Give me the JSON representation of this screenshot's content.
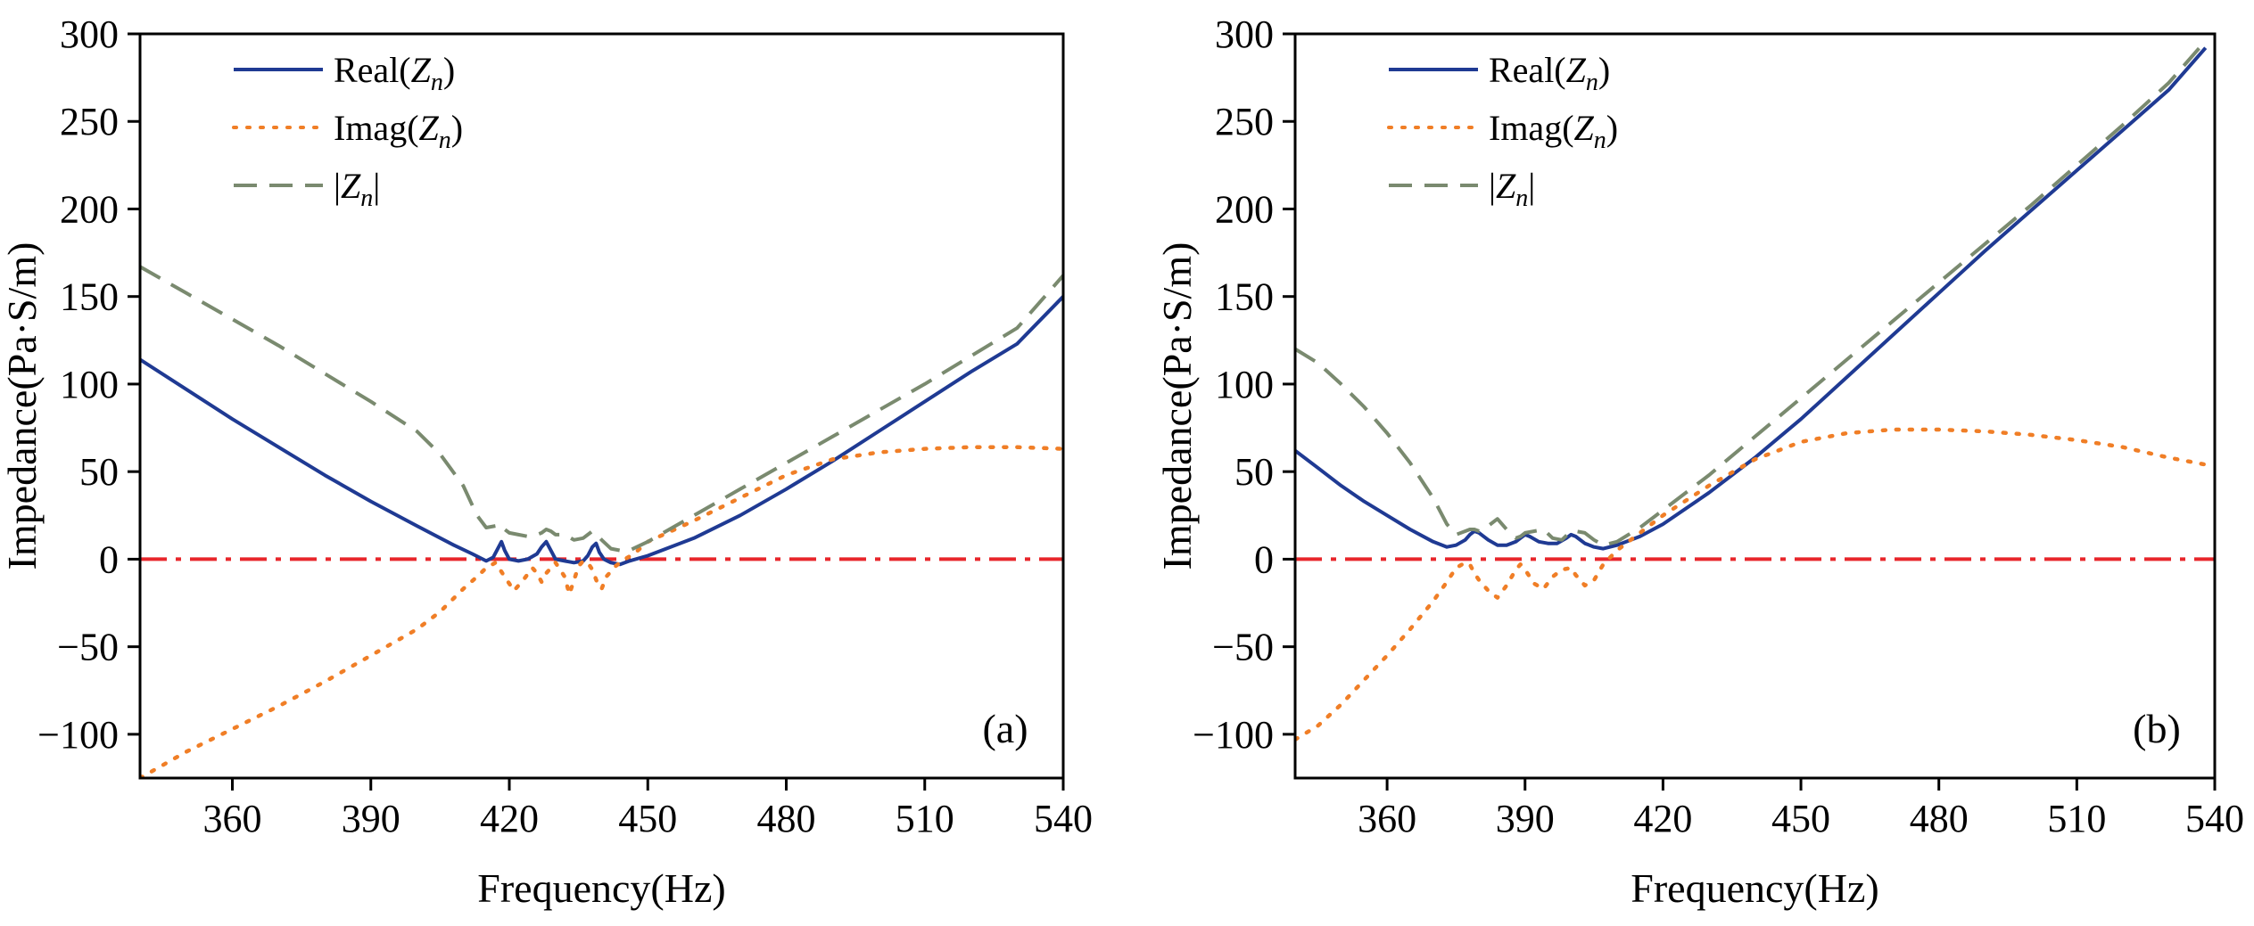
{
  "chart_data": [
    {
      "type": "line",
      "panel_label": "(a)",
      "xlabel": "Frequency(Hz)",
      "ylabel": "Impedance(Pa·S/m)",
      "xlim": [
        340,
        540
      ],
      "ylim": [
        -125,
        300
      ],
      "xticks": [
        360,
        390,
        420,
        450,
        480,
        510,
        540
      ],
      "yticks": [
        -100,
        -50,
        0,
        50,
        100,
        150,
        200,
        250,
        300
      ],
      "ytick_labels": [
        "−100",
        "−50",
        "0",
        "50",
        "100",
        "150",
        "200",
        "250",
        "300"
      ],
      "legend_position": "top-left",
      "reference_line": {
        "name": "zero line",
        "y": 0,
        "color": "#e8262b",
        "style": "dashdot"
      },
      "series": [
        {
          "name": "Real(Z_n)",
          "legend_base": "Real(",
          "legend_var": "Z",
          "legend_sub": "n",
          "legend_tail": ")",
          "color": "#1f3a93",
          "style": "solid",
          "x": [
            340,
            350,
            360,
            370,
            380,
            390,
            400,
            408,
            412,
            415,
            416.5,
            417.5,
            418.3,
            419,
            420,
            422,
            424,
            426,
            427,
            428,
            429,
            430,
            432,
            434,
            436,
            437,
            438,
            438.8,
            439.5,
            440.5,
            442,
            444,
            446,
            450,
            460,
            470,
            480,
            490,
            500,
            510,
            520,
            530,
            540
          ],
          "y": [
            114,
            97,
            80,
            64,
            48,
            33,
            19,
            8,
            3,
            -1,
            1,
            6,
            10,
            5,
            0,
            -1,
            0,
            3,
            7,
            10,
            5,
            0,
            -1,
            -2,
            -1,
            2,
            7,
            9,
            4,
            0,
            -2,
            -3,
            -1,
            2,
            12,
            25,
            40,
            56,
            73,
            90,
            107,
            123,
            150
          ]
        },
        {
          "name": "Imag(Z_n)",
          "legend_base": "Imag(",
          "legend_var": "Z",
          "legend_sub": "n",
          "legend_tail": ")",
          "color": "#f07e26",
          "style": "dotted",
          "x": [
            340,
            350,
            360,
            370,
            380,
            390,
            400,
            405,
            410,
            413,
            415,
            417,
            418,
            419,
            420,
            421,
            423,
            425,
            426,
            427,
            428,
            430,
            432,
            433,
            434,
            435,
            436,
            437,
            438,
            439,
            440,
            441,
            443,
            445,
            447,
            450,
            460,
            470,
            480,
            490,
            500,
            510,
            520,
            530,
            540
          ],
          "y": [
            -125,
            -110,
            -97,
            -84,
            -70,
            -55,
            -40,
            -30,
            -17,
            -10,
            -5,
            -2,
            -6,
            -10,
            -14,
            -18,
            -12,
            -5,
            -8,
            -13,
            -8,
            -2,
            -10,
            -20,
            -12,
            -4,
            -1,
            -2,
            -6,
            -13,
            -17,
            -10,
            -4,
            0,
            3,
            10,
            22,
            35,
            48,
            57,
            61,
            63,
            64,
            64,
            63
          ]
        },
        {
          "name": "|Z_n|",
          "legend_base": "|",
          "legend_var": "Z",
          "legend_sub": "n",
          "legend_tail": "|",
          "color": "#7a8a6f",
          "style": "dashed",
          "x": [
            340,
            350,
            360,
            370,
            380,
            390,
            400,
            405,
            410,
            413,
            415,
            417,
            418,
            419,
            420,
            422,
            424,
            426,
            427,
            428,
            429,
            430,
            432,
            434,
            436,
            437,
            438,
            439,
            440,
            442,
            444,
            446,
            450,
            460,
            470,
            480,
            490,
            500,
            510,
            520,
            530,
            540
          ],
          "y": [
            167,
            152,
            137,
            122,
            106,
            90,
            73,
            60,
            42,
            25,
            18,
            19,
            20,
            17,
            15,
            14,
            13,
            14,
            15,
            17,
            16,
            14,
            14,
            11,
            12,
            14,
            16,
            14,
            11,
            6,
            5,
            5,
            10,
            25,
            40,
            55,
            70,
            85,
            100,
            116,
            132,
            162
          ]
        }
      ]
    },
    {
      "type": "line",
      "panel_label": "(b)",
      "xlabel": "Frequency(Hz)",
      "ylabel": "Impedance(Pa·S/m)",
      "xlim": [
        340,
        540
      ],
      "ylim": [
        -125,
        300
      ],
      "xticks": [
        360,
        390,
        420,
        450,
        480,
        510,
        540
      ],
      "yticks": [
        -100,
        -50,
        0,
        50,
        100,
        150,
        200,
        250,
        300
      ],
      "ytick_labels": [
        "−100",
        "−50",
        "0",
        "50",
        "100",
        "150",
        "200",
        "250",
        "300"
      ],
      "legend_position": "top-left",
      "reference_line": {
        "name": "zero line",
        "y": 0,
        "color": "#e8262b",
        "style": "dashdot"
      },
      "series": [
        {
          "name": "Real(Z_n)",
          "legend_base": "Real(",
          "legend_var": "Z",
          "legend_sub": "n",
          "legend_tail": ")",
          "color": "#1f3a93",
          "style": "solid",
          "x": [
            340,
            345,
            350,
            355,
            360,
            365,
            370,
            373,
            375,
            377,
            378,
            379,
            380,
            382,
            384,
            386,
            388,
            389,
            390,
            391,
            393,
            395,
            397,
            399,
            400,
            401,
            403,
            405,
            407,
            410,
            415,
            420,
            430,
            440,
            450,
            460,
            470,
            480,
            490,
            500,
            510,
            520,
            530,
            538
          ],
          "y": [
            62,
            52,
            42,
            33,
            25,
            17,
            10,
            7,
            8,
            11,
            14,
            16,
            15,
            11,
            8,
            8,
            10,
            12,
            14,
            13,
            10,
            9,
            9,
            12,
            14,
            13,
            9,
            7,
            6,
            8,
            13,
            20,
            38,
            58,
            80,
            104,
            128,
            152,
            176,
            199,
            222,
            245,
            268,
            292
          ]
        },
        {
          "name": "Imag(Z_n)",
          "legend_base": "Imag(",
          "legend_var": "Z",
          "legend_sub": "n",
          "legend_tail": ")",
          "color": "#f07e26",
          "style": "dotted",
          "x": [
            340,
            345,
            350,
            355,
            360,
            365,
            370,
            373,
            375,
            377,
            378,
            379,
            380,
            382,
            384,
            386,
            388,
            389,
            390,
            392,
            394,
            396,
            398,
            400,
            401,
            403,
            405,
            407,
            410,
            415,
            420,
            430,
            440,
            450,
            460,
            470,
            480,
            490,
            500,
            510,
            520,
            530,
            538
          ],
          "y": [
            -103,
            -95,
            -83,
            -69,
            -55,
            -40,
            -24,
            -13,
            -5,
            -2,
            -3,
            -8,
            -12,
            -18,
            -22,
            -15,
            -6,
            -3,
            -6,
            -14,
            -17,
            -10,
            -6,
            -5,
            -9,
            -15,
            -12,
            -3,
            5,
            15,
            25,
            42,
            57,
            67,
            72,
            74,
            74,
            73,
            71,
            68,
            64,
            58,
            54
          ]
        },
        {
          "name": "|Z_n|",
          "legend_base": "|",
          "legend_var": "Z",
          "legend_sub": "n",
          "legend_tail": "|",
          "color": "#7a8a6f",
          "style": "dashed",
          "x": [
            340,
            345,
            350,
            355,
            360,
            365,
            370,
            373,
            375,
            377,
            378,
            379,
            380,
            382,
            384,
            386,
            388,
            389,
            390,
            392,
            394,
            396,
            398,
            400,
            401,
            403,
            405,
            407,
            410,
            415,
            420,
            430,
            440,
            450,
            460,
            470,
            480,
            490,
            500,
            510,
            520,
            530,
            538
          ],
          "y": [
            120,
            112,
            100,
            87,
            72,
            55,
            35,
            20,
            14,
            16,
            17,
            17,
            16,
            19,
            23,
            17,
            12,
            13,
            15,
            16,
            17,
            12,
            11,
            16,
            16,
            15,
            11,
            8,
            10,
            18,
            28,
            48,
            70,
            92,
            114,
            136,
            158,
            180,
            202,
            225,
            248,
            272,
            296
          ]
        }
      ]
    }
  ]
}
